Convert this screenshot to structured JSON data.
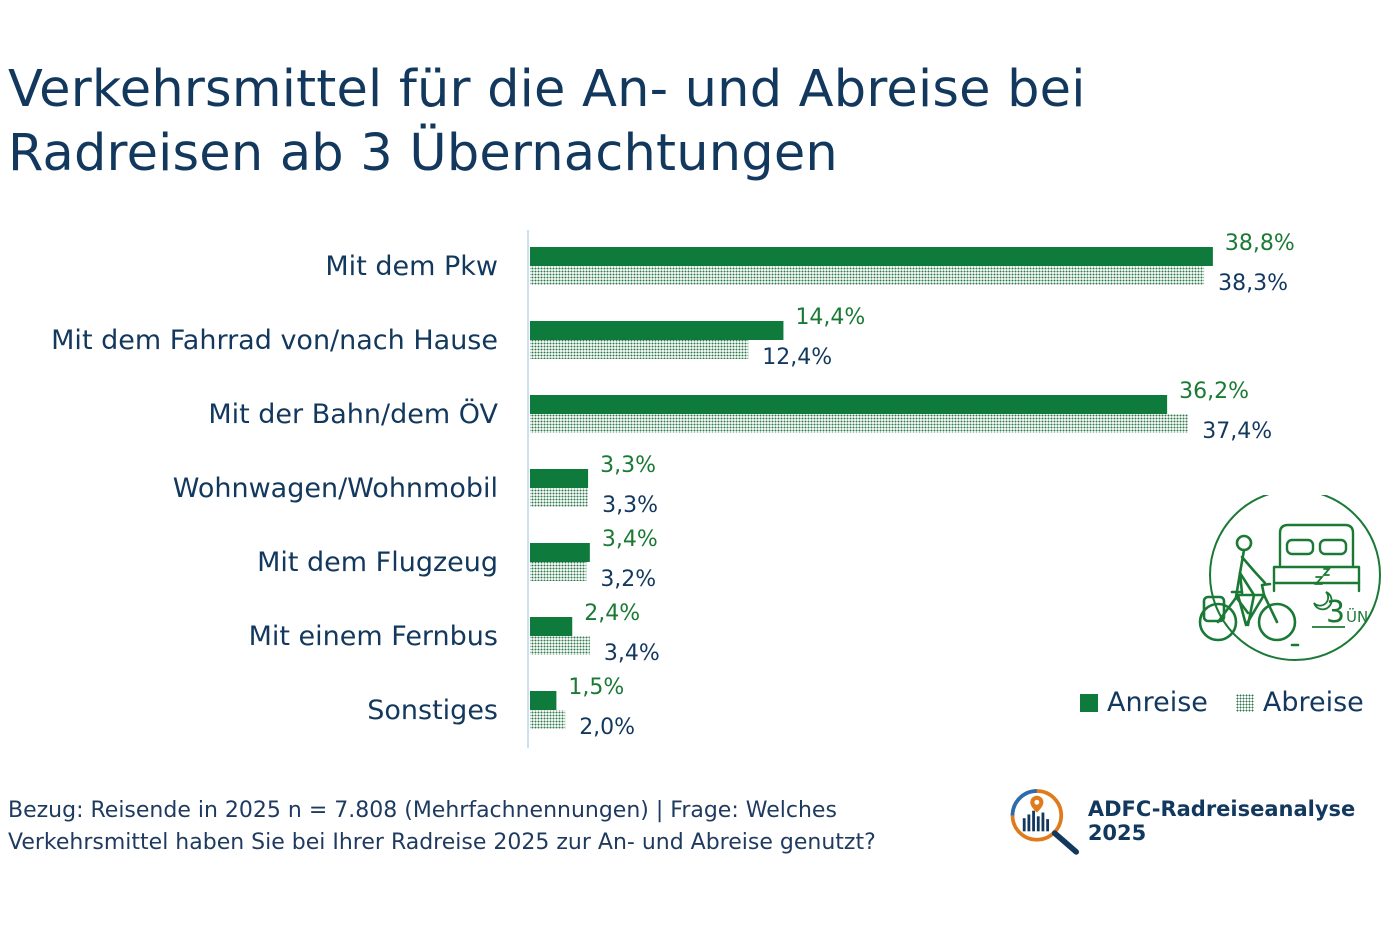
{
  "title_lines": [
    "Verkehrsmittel für die An- und Abreise bei",
    "Radreisen ab 3 Übernachtungen"
  ],
  "chart_data": {
    "type": "bar",
    "orientation": "horizontal",
    "categories": [
      "Mit dem Pkw",
      "Mit dem Fahrrad von/nach Hause",
      "Mit der Bahn/dem ÖV",
      "Wohnwagen/Wohnmobil",
      "Mit dem Flugzeug",
      "Mit einem Fernbus",
      "Sonstiges"
    ],
    "series": [
      {
        "name": "Anreise",
        "values": [
          38.8,
          14.4,
          36.2,
          3.3,
          3.4,
          2.4,
          1.5
        ],
        "labels": [
          "38,8%",
          "14,4%",
          "36,2%",
          "3,3%",
          "3,4%",
          "2,4%",
          "1,5%"
        ],
        "color": "#0e7a3c",
        "pattern": "solid"
      },
      {
        "name": "Abreise",
        "values": [
          38.3,
          12.4,
          37.4,
          3.3,
          3.2,
          3.4,
          2.0
        ],
        "labels": [
          "38,3%",
          "12,4%",
          "37,4%",
          "3,3%",
          "3,2%",
          "3,4%",
          "2,0%"
        ],
        "color": "#2f7a4d",
        "pattern": "dotted"
      }
    ],
    "xlim": [
      0,
      40
    ],
    "grid": false,
    "legend_position": "bottom-right",
    "label_colors": {
      "Anreise": "#1a7a35",
      "Abreise": "#13385e"
    }
  },
  "legend": {
    "anreise": "Anreise",
    "abreise": "Abreise"
  },
  "illustration": {
    "badge": "3",
    "badge_unit": "ÜN",
    "icon": "cyclist-bed-icon"
  },
  "footnote_lines": [
    "Bezug: Reisende in 2025 n = 7.808 (Mehrfachnennungen) | Frage: Welches",
    "Verkehrsmittel haben Sie bei Ihrer Radreise 2025 zur An- und Abreise genutzt?"
  ],
  "brand": {
    "name": "ADFC-Radreiseanalyse 2025",
    "icon": "magnifier-chart-icon"
  }
}
